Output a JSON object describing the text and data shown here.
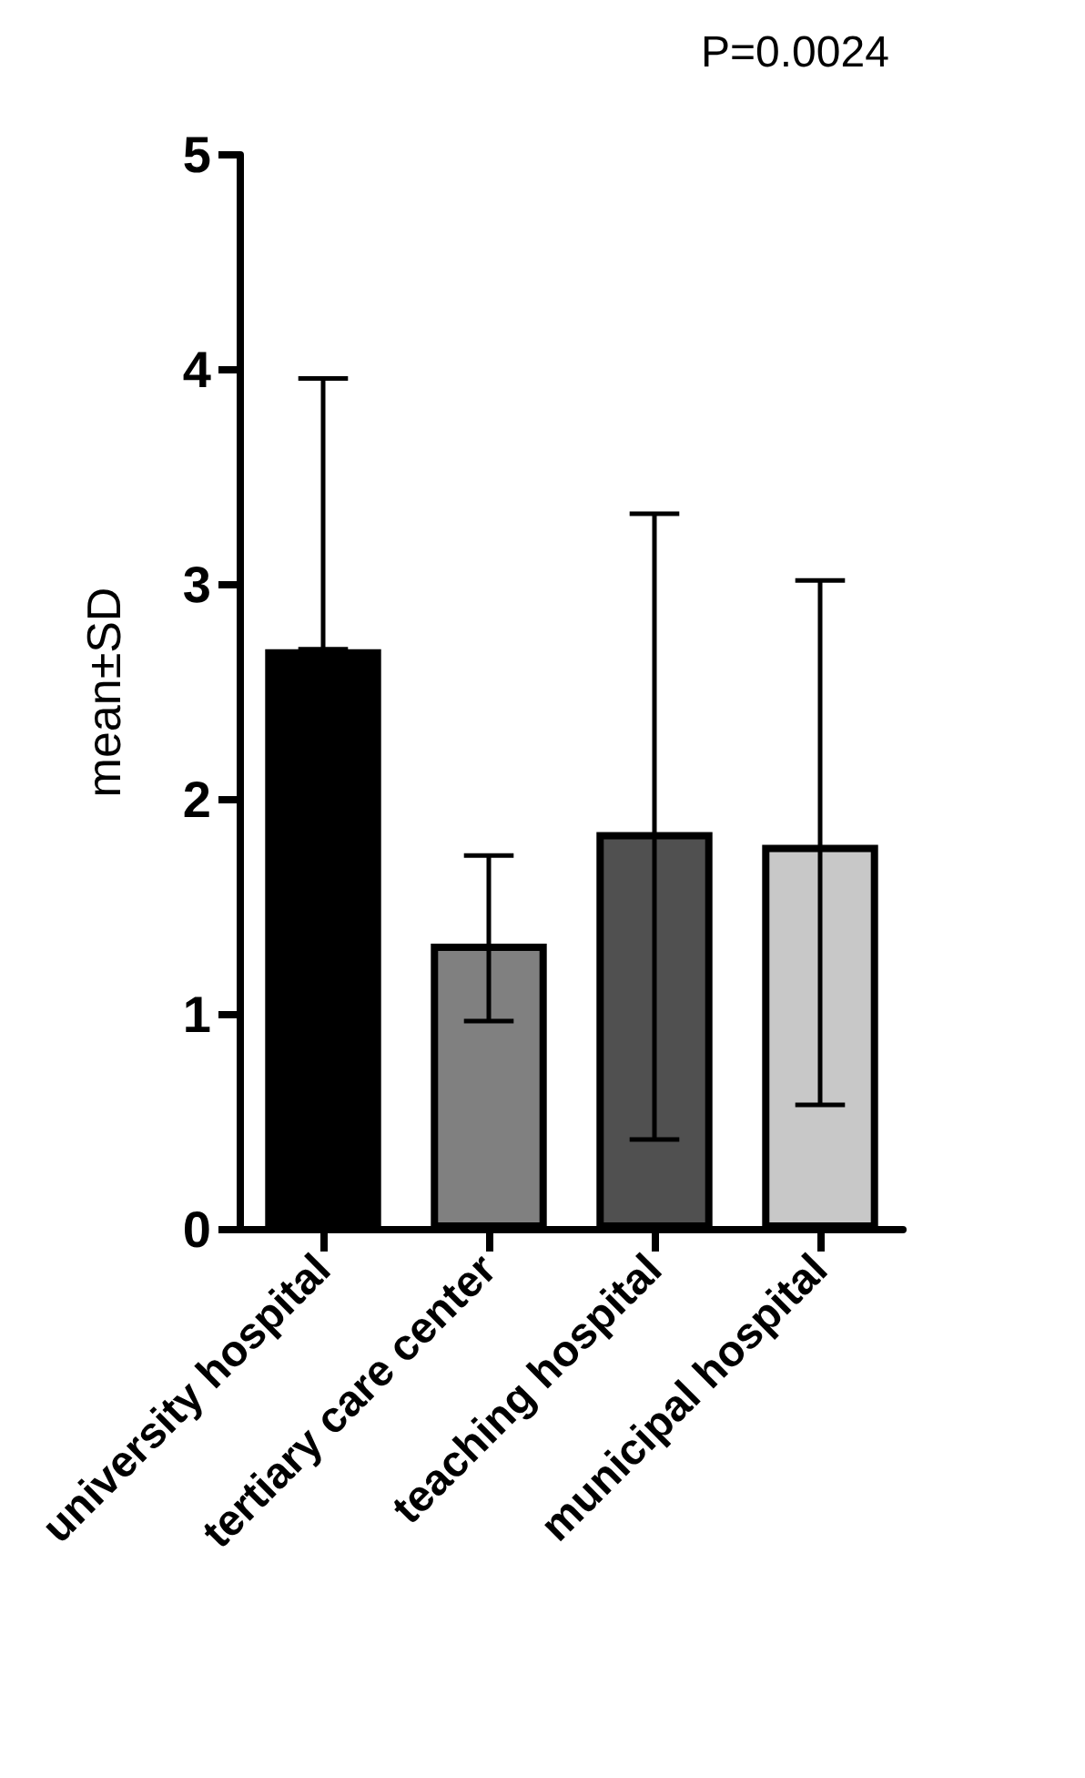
{
  "chart_data": {
    "type": "bar",
    "ylabel": "mean±SD",
    "categories": [
      "university hospital",
      "tertiary care center",
      "teaching hospital",
      "municipal hospital"
    ],
    "values": [
      2.7,
      1.33,
      1.85,
      1.79
    ],
    "colors": [
      "#000000",
      "#808080",
      "#505050",
      "#c8c8c8"
    ],
    "errors": [
      [
        2.7,
        3.96
      ],
      [
        0.97,
        1.74
      ],
      [
        0.42,
        3.33
      ],
      [
        0.58,
        3.02
      ]
    ],
    "ylim": [
      0,
      5
    ],
    "yticks": [
      0,
      1,
      2,
      3,
      4,
      5
    ],
    "grid": false,
    "annotations": [
      "P=0.0024"
    ]
  }
}
